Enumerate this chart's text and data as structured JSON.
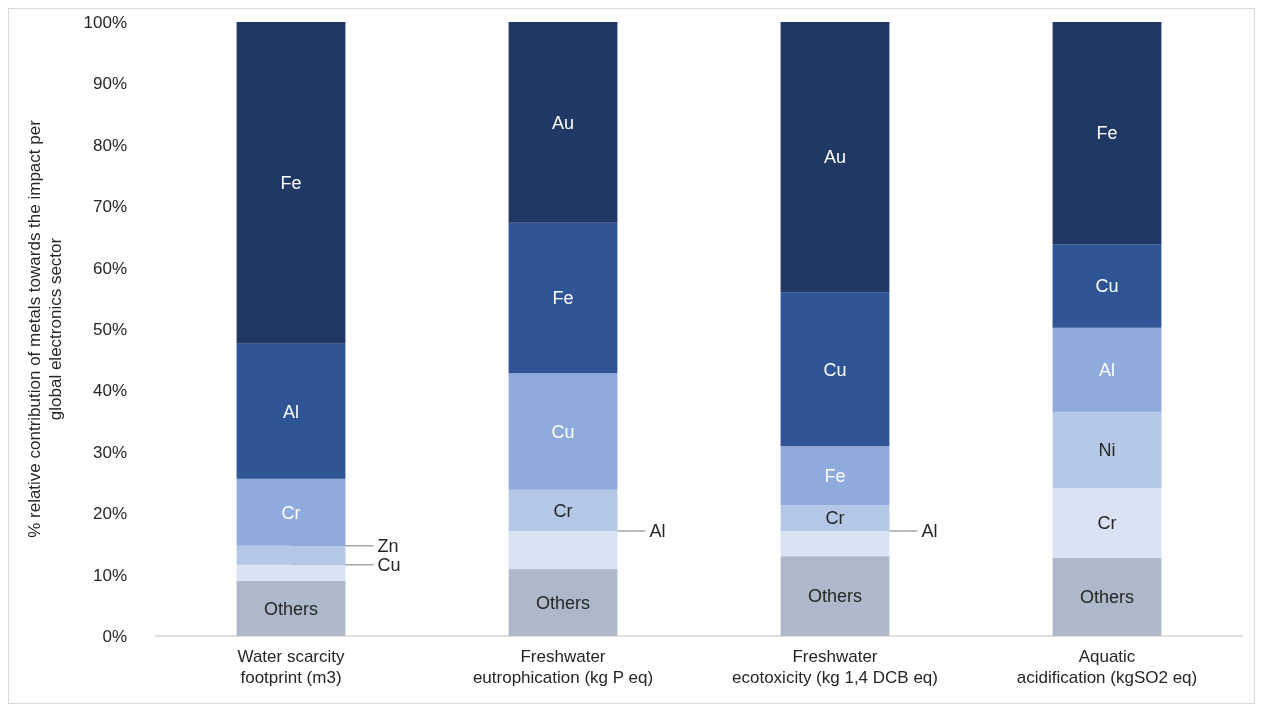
{
  "chart_data": {
    "type": "bar",
    "stacked": true,
    "ylabel": "% relative contribution of metals towards the impact per\nglobal electronics sector",
    "categories": [
      "Water scarcity\nfootprint (m3)",
      "Freshwater\neutrophication (kg P eq)",
      "Freshwater\necotoxicity (kg 1,4 DCB eq)",
      "Aquatic\nacidification (kgSO2 eq)"
    ],
    "series": [
      {
        "color": "#adb9ca",
        "values": [
          9,
          10.9,
          13,
          12.7
        ],
        "value_labels": [
          "Others",
          "Others",
          "Others",
          "Others"
        ]
      },
      {
        "color": "#dae3f3",
        "values": [
          2.6,
          6.2,
          4.1,
          11.4
        ],
        "value_labels": [
          null,
          null,
          null,
          "Cr"
        ]
      },
      {
        "color": "#b4c7e7",
        "values": [
          3.1,
          6.7,
          4.2,
          12.4
        ],
        "value_labels": [
          null,
          "Cr",
          "Cr",
          "Ni"
        ]
      },
      {
        "color": "#8faadc",
        "values": [
          10.9,
          19,
          9.6,
          13.7
        ],
        "value_labels": [
          "Cr",
          "Cu",
          "Fe",
          "Al"
        ]
      },
      {
        "color": "#2f5597",
        "values": [
          22,
          24.5,
          25.1,
          13.6
        ],
        "value_labels": [
          "Al",
          "Fe",
          "Cu",
          "Cu"
        ]
      },
      {
        "color": "#203864",
        "values": [
          52.4,
          32.7,
          44,
          36.2
        ],
        "value_labels": [
          "Fe",
          "Au",
          "Au",
          "Fe"
        ]
      }
    ],
    "annotations": [
      {
        "text": "Zn",
        "x": "Water scarcity\nfootprint (m3)",
        "y": 14.7
      },
      {
        "text": "Cu",
        "x": "Water scarcity\nfootprint (m3)",
        "y": 11.6
      },
      {
        "text": "Al",
        "x": "Freshwater\neutrophication (kg P eq)",
        "y": 17.1
      },
      {
        "text": "Al",
        "x": "Freshwater\necotoxicity (kg 1,4 DCB eq)",
        "y": 17.1
      }
    ],
    "ylim": [
      0,
      100
    ],
    "yticks": [
      {
        "value": 0,
        "label": "0%"
      },
      {
        "value": 10,
        "label": "10%"
      },
      {
        "value": 20,
        "label": "20%"
      },
      {
        "value": 30,
        "label": "30%"
      },
      {
        "value": 40,
        "label": "40%"
      },
      {
        "value": 50,
        "label": "50%"
      },
      {
        "value": 60,
        "label": "60%"
      },
      {
        "value": 70,
        "label": "70%"
      },
      {
        "value": 80,
        "label": "80%"
      },
      {
        "value": 90,
        "label": "90%"
      },
      {
        "value": 100,
        "label": "100%"
      }
    ],
    "grid": false,
    "legend": false
  }
}
